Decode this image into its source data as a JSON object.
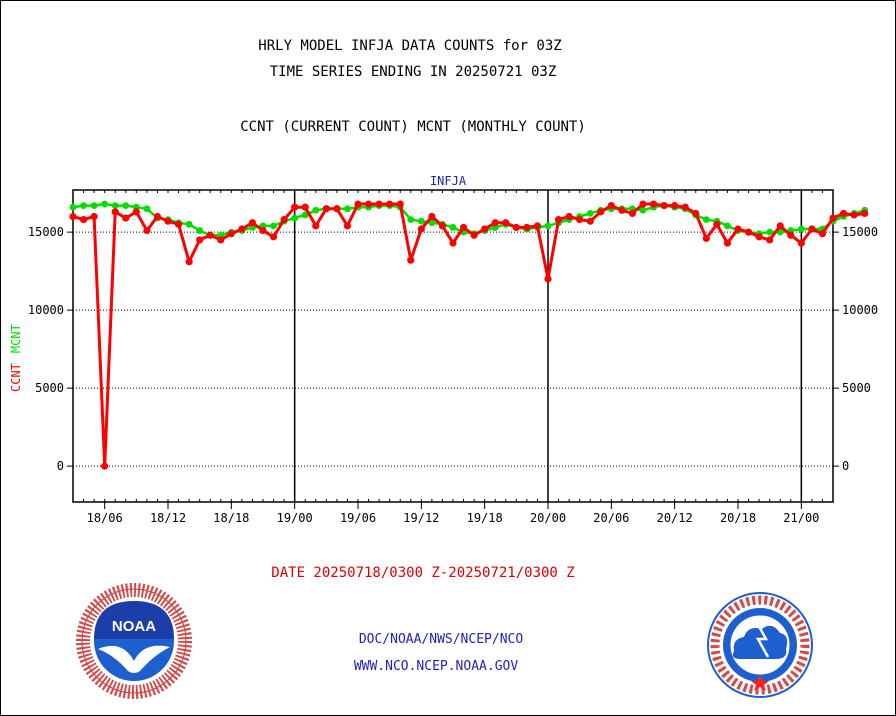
{
  "titles": {
    "line1": "HRLY MODEL INFJA DATA COUNTS for 03Z",
    "line2": "TIME SERIES ENDING IN 20250721 03Z",
    "line3": "CCNT (CURRENT COUNT) MCNT (MONTHLY COUNT)"
  },
  "footer": {
    "date_range": "DATE 20250718/0300 Z-20250721/0300 Z",
    "link1": "DOC/NOAA/NWS/NCEP/NCO",
    "link2": "WWW.NCO.NCEP.NOAA.GOV"
  },
  "logos": {
    "left": {
      "icon": "noaa-logo-icon",
      "text": "NOAA"
    },
    "right": {
      "icon": "nws-logo-icon"
    }
  },
  "colors": {
    "ccnt": "#ff0000",
    "mcnt": "#00dd00",
    "title_blue": "#1f1fc0",
    "date_red": "#e00000"
  },
  "chart_data": {
    "type": "line",
    "title": "INFJA",
    "ylim": [
      -2300,
      17700
    ],
    "yticks": [
      0,
      5000,
      10000,
      15000
    ],
    "ylabels": {
      "ccnt": "CCNT",
      "mcnt": "MCNT"
    },
    "x_start_hour": 3,
    "x_end_hour": 75,
    "xticks": [
      {
        "hour": 6,
        "label": "18/06"
      },
      {
        "hour": 12,
        "label": "18/12"
      },
      {
        "hour": 18,
        "label": "18/18"
      },
      {
        "hour": 24,
        "label": "19/00"
      },
      {
        "hour": 30,
        "label": "19/06"
      },
      {
        "hour": 36,
        "label": "19/12"
      },
      {
        "hour": 42,
        "label": "19/18"
      },
      {
        "hour": 48,
        "label": "20/00"
      },
      {
        "hour": 54,
        "label": "20/06"
      },
      {
        "hour": 60,
        "label": "20/12"
      },
      {
        "hour": 66,
        "label": "20/18"
      },
      {
        "hour": 72,
        "label": "21/00"
      }
    ],
    "day_boundaries": [
      24,
      48,
      72
    ],
    "grid": true,
    "series": [
      {
        "name": "CCNT",
        "color": "#ff0000",
        "values": [
          16000,
          15800,
          16000,
          0,
          16300,
          15900,
          16300,
          15100,
          16000,
          15700,
          15500,
          13100,
          14500,
          14800,
          14500,
          14900,
          15200,
          15600,
          15100,
          14700,
          15800,
          16600,
          16600,
          15400,
          16500,
          16500,
          15400,
          16800,
          16800,
          16800,
          16800,
          16800,
          13200,
          15200,
          16000,
          15400,
          14300,
          15300,
          14800,
          15200,
          15600,
          15600,
          15300,
          15300,
          15400,
          12000,
          15800,
          16000,
          15800,
          15700,
          16300,
          16700,
          16400,
          16200,
          16800,
          16800,
          16700,
          16700,
          16600,
          16200,
          14600,
          15500,
          14300,
          15200,
          15000,
          14700,
          14500,
          15400,
          14800,
          14300,
          15200,
          14900,
          15900,
          16200,
          16100,
          16200
        ]
      },
      {
        "name": "MCNT",
        "color": "#00dd00",
        "values": [
          16600,
          16700,
          16700,
          16800,
          16700,
          16700,
          16600,
          16500,
          15900,
          15800,
          15600,
          15500,
          15100,
          14800,
          14800,
          15000,
          15100,
          15300,
          15400,
          15400,
          15700,
          15900,
          16100,
          16400,
          16500,
          16500,
          16500,
          16600,
          16600,
          16700,
          16700,
          16600,
          15800,
          15700,
          15600,
          15500,
          15300,
          15000,
          14900,
          15100,
          15300,
          15500,
          15300,
          15200,
          15300,
          15400,
          15600,
          15800,
          16000,
          16200,
          16400,
          16500,
          16500,
          16500,
          16400,
          16600,
          16700,
          16600,
          16500,
          16100,
          15800,
          15700,
          15400,
          15100,
          15000,
          14900,
          15000,
          15000,
          15100,
          15200,
          15200,
          15200,
          15700,
          16000,
          16200,
          16400
        ]
      }
    ]
  }
}
